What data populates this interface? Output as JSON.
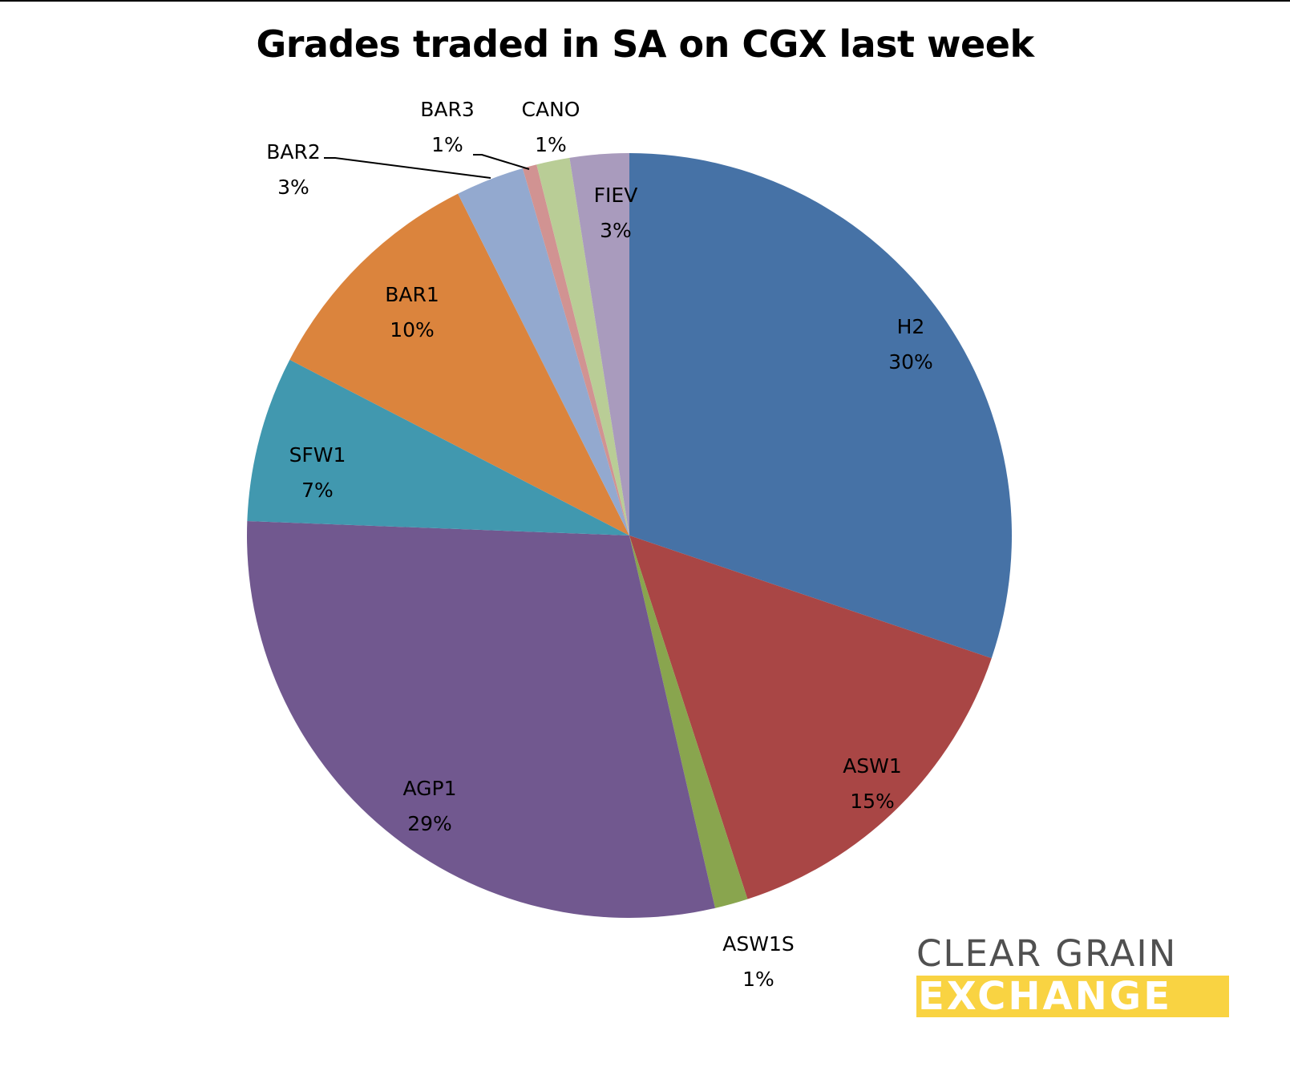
{
  "title": "Grades traded in SA on CGX last week",
  "logo": {
    "line1": "CLEAR GRAIN",
    "line2": "EXCHANGE",
    "text_color": "#505050",
    "band_color": "#f9d342"
  },
  "chart_data": {
    "type": "pie",
    "title": "Grades traded in SA on CGX last week",
    "categories": [
      "H2",
      "ASW1",
      "ASW1S",
      "AGP1",
      "SFW1",
      "BAR1",
      "BAR2",
      "BAR3",
      "CANO",
      "FIEV"
    ],
    "values": [
      30,
      15,
      1,
      29,
      7,
      10,
      3,
      1,
      1,
      3
    ],
    "labels": [
      "30%",
      "15%",
      "1%",
      "29%",
      "7%",
      "10%",
      "3%",
      "1%",
      "1%",
      "3%"
    ],
    "colors": [
      "#4672a6",
      "#a94645",
      "#89a54e",
      "#71588f",
      "#4198af",
      "#db843d",
      "#93a9cf",
      "#d19392",
      "#b9cd96",
      "#a99bbd"
    ],
    "start_angle_deg": 0,
    "direction": "clockwise",
    "legend": "none (data labels on slices)"
  },
  "slices": [
    {
      "name": "H2",
      "pct": "30%"
    },
    {
      "name": "ASW1",
      "pct": "15%"
    },
    {
      "name": "ASW1S",
      "pct": "1%"
    },
    {
      "name": "AGP1",
      "pct": "29%"
    },
    {
      "name": "SFW1",
      "pct": "7%"
    },
    {
      "name": "BAR1",
      "pct": "10%"
    },
    {
      "name": "BAR2",
      "pct": "3%"
    },
    {
      "name": "BAR3",
      "pct": "1%"
    },
    {
      "name": "CANO",
      "pct": "1%"
    },
    {
      "name": "FIEV",
      "pct": "3%"
    }
  ]
}
